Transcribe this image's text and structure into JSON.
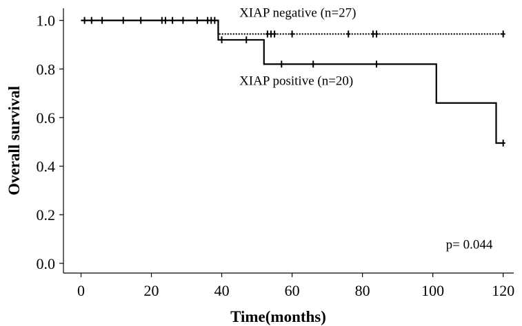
{
  "chart_data": {
    "type": "line",
    "subtype": "kaplan-meier",
    "xlabel": "Time(months)",
    "ylabel": "Overall survival",
    "xlim": [
      -5,
      123
    ],
    "ylim": [
      -0.04,
      1.05
    ],
    "xticks": [
      0,
      20,
      40,
      60,
      80,
      100,
      120
    ],
    "yticks": [
      0.0,
      0.2,
      0.4,
      0.6,
      0.8,
      1.0
    ],
    "ytick_labels": [
      "0.0",
      "0.2",
      "0.4",
      "0.6",
      "0.8",
      "1.0"
    ],
    "grid": false,
    "series": [
      {
        "name": "XIAP negative (n=27)",
        "style": "dotted",
        "color": "#000000",
        "steps": [
          [
            0,
            1.0
          ],
          [
            39,
            1.0
          ],
          [
            39,
            0.944
          ],
          [
            120,
            0.944
          ]
        ],
        "censored": [
          [
            1,
            1.0
          ],
          [
            3,
            1.0
          ],
          [
            6,
            1.0
          ],
          [
            12,
            1.0
          ],
          [
            17,
            1.0
          ],
          [
            23,
            1.0
          ],
          [
            24,
            1.0
          ],
          [
            26,
            1.0
          ],
          [
            29,
            1.0
          ],
          [
            33,
            1.0
          ],
          [
            36,
            1.0
          ],
          [
            37,
            1.0
          ],
          [
            38,
            1.0
          ],
          [
            53,
            0.944
          ],
          [
            54,
            0.944
          ],
          [
            55,
            0.944
          ],
          [
            60,
            0.944
          ],
          [
            76,
            0.944
          ],
          [
            83,
            0.944
          ],
          [
            84,
            0.944
          ],
          [
            120,
            0.944
          ]
        ]
      },
      {
        "name": "XIAP positive (n=20)",
        "style": "solid",
        "color": "#000000",
        "steps": [
          [
            0,
            1.0
          ],
          [
            39,
            1.0
          ],
          [
            39,
            0.92
          ],
          [
            52,
            0.92
          ],
          [
            52,
            0.82
          ],
          [
            101,
            0.82
          ],
          [
            101,
            0.66
          ],
          [
            118,
            0.66
          ],
          [
            118,
            0.495
          ],
          [
            120,
            0.495
          ]
        ],
        "censored": [
          [
            40,
            0.92
          ],
          [
            47,
            0.92
          ],
          [
            57,
            0.82
          ],
          [
            66,
            0.82
          ],
          [
            84,
            0.82
          ],
          [
            120,
            0.495
          ]
        ]
      }
    ],
    "annotations": [
      {
        "text": "p= 0.044",
        "x": 117,
        "y": 0.06
      }
    ]
  }
}
